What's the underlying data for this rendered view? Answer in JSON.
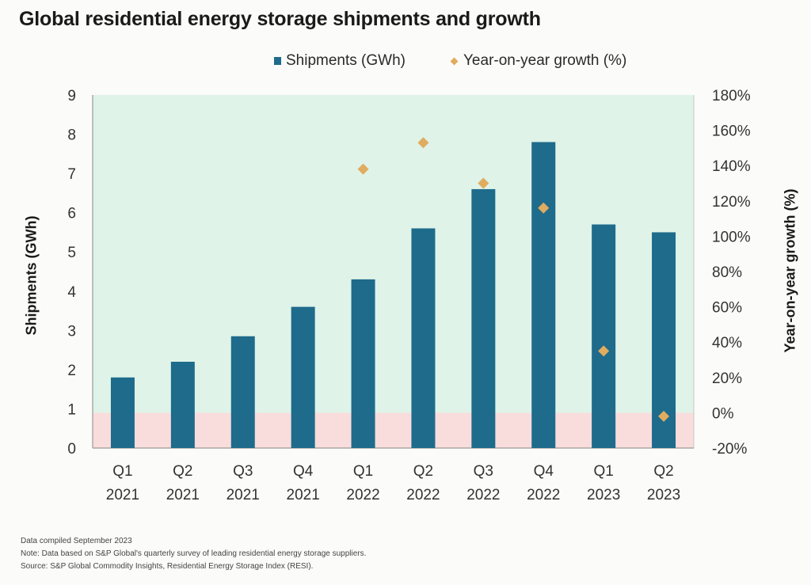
{
  "chart_data": {
    "type": "bar",
    "title": "Global residential energy storage shipments and growth",
    "categories": [
      "Q1\n2021",
      "Q2\n2021",
      "Q3\n2021",
      "Q4\n2021",
      "Q1\n2022",
      "Q2\n2022",
      "Q3\n2022",
      "Q4\n2022",
      "Q1\n2023",
      "Q2\n2023"
    ],
    "category_lines": [
      [
        "Q1",
        "2021"
      ],
      [
        "Q2",
        "2021"
      ],
      [
        "Q3",
        "2021"
      ],
      [
        "Q4",
        "2021"
      ],
      [
        "Q1",
        "2022"
      ],
      [
        "Q2",
        "2022"
      ],
      [
        "Q3",
        "2022"
      ],
      [
        "Q4",
        "2022"
      ],
      [
        "Q1",
        "2023"
      ],
      [
        "Q2",
        "2023"
      ]
    ],
    "series": [
      {
        "name": "Shipments (GWh)",
        "type": "bar",
        "axis": "left",
        "color": "#1e6b8c",
        "values": [
          1.8,
          2.2,
          2.85,
          3.6,
          4.3,
          5.6,
          6.6,
          7.8,
          5.7,
          5.5
        ]
      },
      {
        "name": "Year-on-year growth (%)",
        "type": "scatter",
        "marker": "diamond",
        "axis": "right",
        "color": "#e0ac5f",
        "values": [
          null,
          null,
          null,
          null,
          138,
          153,
          130,
          116,
          35,
          -2
        ]
      }
    ],
    "xlabel": "",
    "ylabel": "Shipments (GWh)",
    "y2label": "Year-on-year growth (%)",
    "ylim": [
      0,
      9
    ],
    "yticks": [
      0,
      1,
      2,
      3,
      4,
      5,
      6,
      7,
      8,
      9
    ],
    "y2lim": [
      -20,
      180
    ],
    "y2ticks": [
      "-20%",
      "0%",
      "20%",
      "40%",
      "60%",
      "80%",
      "100%",
      "120%",
      "140%",
      "160%",
      "180%"
    ],
    "y2tick_values": [
      -20,
      0,
      20,
      40,
      60,
      80,
      100,
      120,
      140,
      160,
      180
    ],
    "grid": false,
    "legend": "top-center",
    "background_bands": [
      {
        "label": "negative growth zone",
        "from_y2": -20,
        "to_y2": 0,
        "color": "#f9dcdc"
      },
      {
        "label": "positive growth zone",
        "from_y2": 0,
        "to_y2": 180,
        "color": "#dff3e8"
      }
    ]
  },
  "header": {
    "title": "Global residential energy storage shipments and growth"
  },
  "legend": {
    "shipments": "Shipments (GWh)",
    "growth": "Year-on-year growth (%)"
  },
  "axes": {
    "left_title": "Shipments (GWh)",
    "right_title": "Year-on-year growth (%)"
  },
  "footer": {
    "compiled": "Data compiled September 2023",
    "note": "Note: Data based on S&P Global's quarterly survey of leading residential energy storage suppliers.",
    "source": "Source: S&P Global Commodity Insights, Residential Energy Storage Index (RESI)."
  }
}
